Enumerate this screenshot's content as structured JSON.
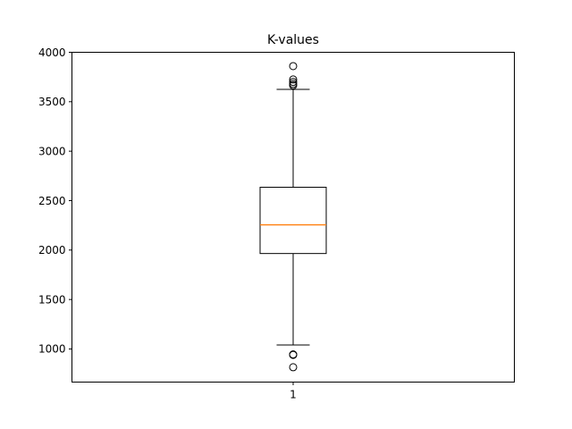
{
  "chart_data": {
    "type": "box",
    "title": "K-values",
    "xlabel": "",
    "ylabel": "",
    "categories": [
      "1"
    ],
    "ylim": [
      665,
      4000
    ],
    "yticks": [
      1000,
      1500,
      2000,
      2500,
      3000,
      3500,
      4000
    ],
    "ytick_labels": [
      "1000",
      "1500",
      "2000",
      "2500",
      "3000",
      "3500",
      "4000"
    ],
    "grid": false,
    "box": {
      "category": "1",
      "q1": 1965,
      "median": 2255,
      "q3": 2635,
      "whisker_low": 1040,
      "whisker_high": 3625,
      "outliers": [
        3860,
        3725,
        3700,
        3680,
        3665,
        945,
        940,
        815
      ]
    },
    "colors": {
      "box": "#000000",
      "median": "#ff7f0e",
      "whisker": "#000000",
      "outlier_edge": "#000000"
    }
  }
}
